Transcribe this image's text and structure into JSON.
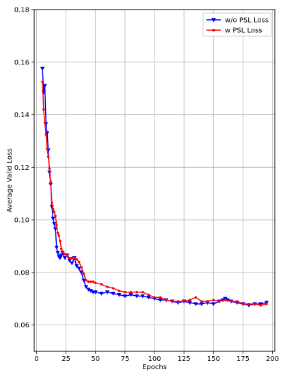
{
  "chart_data": {
    "type": "line",
    "title": "",
    "xlabel": "Epochs",
    "ylabel": "Average Valid Loss",
    "xlim": [
      -2,
      202
    ],
    "ylim": [
      0.05,
      0.18
    ],
    "x_ticks": [
      0,
      25,
      50,
      75,
      100,
      125,
      150,
      175,
      200
    ],
    "y_ticks": [
      0.06,
      0.08,
      0.1,
      0.12,
      0.14,
      0.16,
      0.18
    ],
    "y_tick_labels": [
      "0.06",
      "0.08",
      "0.10",
      "0.12",
      "0.14",
      "0.16",
      "0.18"
    ],
    "grid": true,
    "legend": "top-right",
    "series": [
      {
        "name": "w/o PSL Loss",
        "color": "#0000ff",
        "marker": "triangle-down",
        "x": [
          5,
          6,
          7,
          8,
          9,
          10,
          11,
          12,
          13,
          14,
          15,
          16,
          17,
          18,
          19,
          20,
          21,
          22,
          24,
          26,
          28,
          30,
          32,
          34,
          36,
          38,
          40,
          42,
          44,
          46,
          48,
          50,
          55,
          60,
          65,
          70,
          75,
          80,
          85,
          90,
          95,
          100,
          105,
          110,
          115,
          120,
          125,
          130,
          135,
          140,
          145,
          150,
          155,
          158,
          160,
          162,
          165,
          170,
          175,
          180,
          185,
          190,
          195
        ],
        "y": [
          0.1575,
          0.1485,
          0.151,
          0.1365,
          0.133,
          0.1265,
          0.118,
          0.1135,
          0.105,
          0.1005,
          0.0985,
          0.0965,
          0.0895,
          0.0875,
          0.086,
          0.0855,
          0.0865,
          0.0875,
          0.0855,
          0.0865,
          0.0845,
          0.0835,
          0.0855,
          0.0825,
          0.0815,
          0.08,
          0.077,
          0.0745,
          0.0735,
          0.073,
          0.0725,
          0.0725,
          0.072,
          0.0725,
          0.072,
          0.0715,
          0.071,
          0.0715,
          0.071,
          0.071,
          0.0705,
          0.07,
          0.0695,
          0.0695,
          0.069,
          0.0685,
          0.069,
          0.0685,
          0.068,
          0.068,
          0.0685,
          0.068,
          0.069,
          0.0695,
          0.07,
          0.0695,
          0.069,
          0.0685,
          0.068,
          0.0675,
          0.068,
          0.068,
          0.0685
        ]
      },
      {
        "name": "w PSL Loss",
        "color": "#ff0000",
        "marker": "dot",
        "x": [
          5,
          6,
          7,
          8,
          9,
          10,
          11,
          12,
          13,
          14,
          15,
          16,
          17,
          18,
          19,
          20,
          21,
          22,
          24,
          26,
          28,
          30,
          32,
          34,
          36,
          38,
          40,
          42,
          44,
          46,
          48,
          50,
          55,
          60,
          65,
          70,
          75,
          80,
          85,
          90,
          95,
          100,
          105,
          110,
          115,
          120,
          125,
          130,
          135,
          140,
          145,
          150,
          155,
          160,
          165,
          170,
          175,
          180,
          185,
          190,
          195
        ],
        "y": [
          0.1525,
          0.142,
          0.137,
          0.1325,
          0.127,
          0.124,
          0.1195,
          0.1145,
          0.1065,
          0.104,
          0.103,
          0.1015,
          0.098,
          0.095,
          0.094,
          0.092,
          0.089,
          0.088,
          0.087,
          0.0865,
          0.0855,
          0.0855,
          0.0855,
          0.085,
          0.084,
          0.082,
          0.0795,
          0.077,
          0.0765,
          0.0765,
          0.0765,
          0.076,
          0.0755,
          0.0745,
          0.074,
          0.073,
          0.0725,
          0.0725,
          0.0725,
          0.0725,
          0.0715,
          0.0705,
          0.0705,
          0.0695,
          0.069,
          0.069,
          0.069,
          0.0695,
          0.0705,
          0.069,
          0.069,
          0.0695,
          0.069,
          0.0695,
          0.069,
          0.069,
          0.068,
          0.068,
          0.068,
          0.0675,
          0.068
        ]
      }
    ]
  }
}
